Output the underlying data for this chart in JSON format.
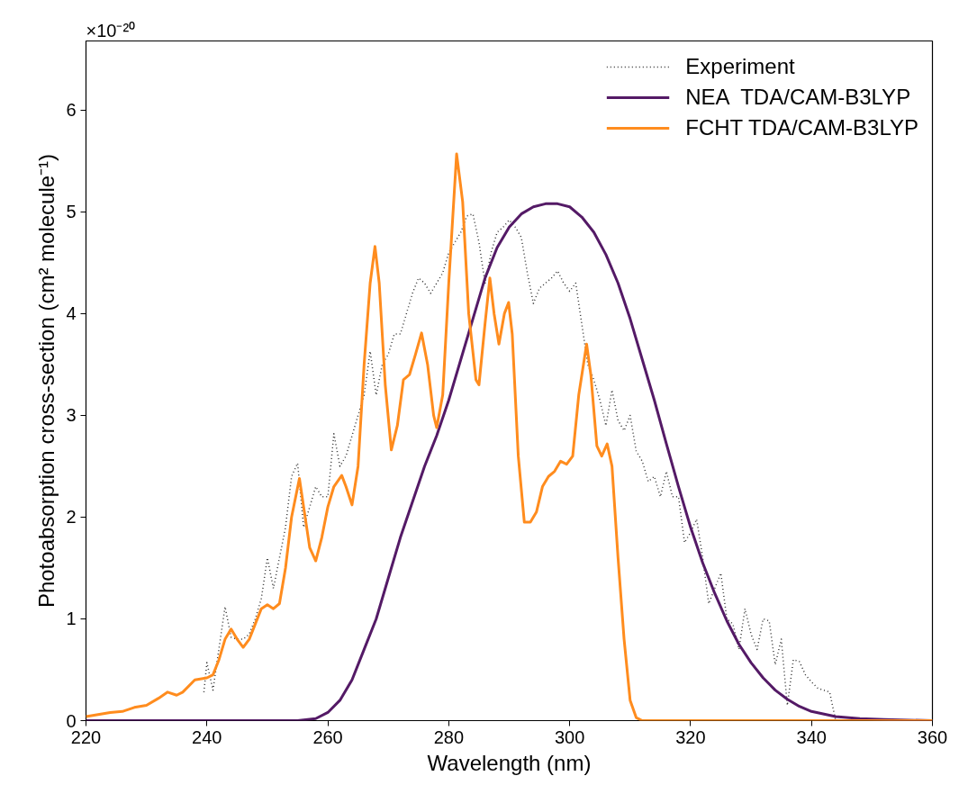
{
  "chart_data": {
    "type": "line",
    "xlabel": "Wavelength (nm)",
    "ylabel": "Photoabsorption cross-section (cm² molecule⁻¹)",
    "annotations": [
      "×10⁻²⁰"
    ],
    "xlim": [
      220,
      360
    ],
    "xticks": [
      220,
      240,
      260,
      280,
      300,
      320,
      340,
      360
    ],
    "ylim": [
      0,
      6.68
    ],
    "yticks": [
      0,
      1,
      2,
      3,
      4,
      5,
      6
    ],
    "grid": false,
    "legend": "top right",
    "series": [
      {
        "name": "Experiment",
        "color": "#333333",
        "line_style": "dotted",
        "x": [
          239.5,
          240,
          241,
          243,
          244,
          245,
          246,
          247,
          248,
          249,
          250,
          251,
          252,
          253,
          254,
          255,
          256,
          257,
          258,
          259,
          260,
          261,
          262,
          263,
          264,
          265,
          266,
          267,
          268,
          269,
          270,
          271,
          272,
          273,
          274,
          275,
          276,
          277,
          278,
          279,
          280,
          281,
          282,
          283,
          284,
          285,
          286,
          287,
          288,
          289,
          290,
          291,
          292,
          293,
          294,
          295,
          296,
          297,
          298,
          299,
          300,
          301,
          302,
          303,
          304,
          305,
          306,
          307,
          308,
          309,
          310,
          311,
          312,
          313,
          314,
          315,
          316,
          317,
          318,
          319,
          320,
          321,
          322,
          323,
          324,
          325,
          326,
          327,
          328,
          329,
          330,
          331,
          332,
          333,
          334,
          335,
          336,
          337,
          338,
          339,
          340,
          341,
          342,
          343,
          344
        ],
        "values": [
          0.28,
          0.57,
          0.3,
          1.12,
          0.82,
          0.8,
          0.8,
          0.85,
          1.0,
          1.2,
          1.6,
          1.3,
          1.6,
          1.9,
          2.4,
          2.53,
          1.9,
          2.1,
          2.3,
          2.2,
          2.2,
          2.82,
          2.5,
          2.6,
          2.8,
          3.0,
          3.2,
          3.63,
          3.2,
          3.5,
          3.6,
          3.8,
          3.8,
          4.0,
          4.2,
          4.35,
          4.3,
          4.2,
          4.3,
          4.4,
          4.6,
          4.7,
          4.8,
          4.96,
          4.98,
          4.7,
          4.3,
          4.6,
          4.8,
          4.85,
          4.92,
          4.85,
          4.75,
          4.4,
          4.1,
          4.25,
          4.3,
          4.35,
          4.42,
          4.3,
          4.22,
          4.3,
          3.9,
          3.5,
          3.35,
          3.15,
          2.9,
          3.25,
          2.95,
          2.85,
          3.0,
          2.65,
          2.55,
          2.35,
          2.4,
          2.2,
          2.45,
          2.2,
          2.2,
          1.75,
          1.85,
          1.98,
          1.6,
          1.15,
          1.3,
          1.45,
          1.0,
          0.95,
          0.7,
          1.1,
          0.85,
          0.7,
          1.0,
          0.98,
          0.55,
          0.8,
          0.15,
          0.6,
          0.58,
          0.45,
          0.38,
          0.32,
          0.3,
          0.28,
          0.0
        ]
      },
      {
        "name": "NEA  TDA/CAM-B3LYP",
        "color": "#541a66",
        "line_style": "solid",
        "x": [
          220,
          255,
          258,
          260,
          262,
          264,
          266,
          268,
          270,
          272,
          274,
          276,
          278,
          280,
          282,
          284,
          286,
          288,
          290,
          292,
          294,
          296,
          298,
          300,
          302,
          304,
          306,
          308,
          310,
          312,
          314,
          316,
          318,
          320,
          322,
          324,
          326,
          328,
          330,
          332,
          334,
          336,
          338,
          340,
          344,
          348,
          352,
          360
        ],
        "values": [
          0,
          0,
          0.02,
          0.08,
          0.2,
          0.4,
          0.7,
          1.0,
          1.4,
          1.8,
          2.15,
          2.5,
          2.8,
          3.15,
          3.55,
          3.95,
          4.35,
          4.65,
          4.85,
          4.98,
          5.05,
          5.08,
          5.08,
          5.05,
          4.95,
          4.8,
          4.58,
          4.3,
          3.95,
          3.55,
          3.15,
          2.72,
          2.3,
          1.9,
          1.55,
          1.25,
          0.98,
          0.75,
          0.57,
          0.42,
          0.3,
          0.21,
          0.14,
          0.09,
          0.04,
          0.02,
          0.01,
          0.0
        ]
      },
      {
        "name": "FCHT TDA/CAM-B3LYP",
        "color": "#ff8c1e",
        "line_style": "solid",
        "x": [
          220,
          222,
          224,
          226,
          228,
          230,
          232,
          233.5,
          235,
          236,
          238,
          240,
          241,
          242,
          243,
          244,
          245,
          246,
          247,
          248,
          249,
          250,
          251,
          252,
          253,
          254,
          255.3,
          256,
          257,
          258,
          259,
          260,
          261,
          262.3,
          263,
          264,
          265,
          266,
          267,
          267.8,
          268.5,
          269.5,
          270.5,
          271.5,
          272.5,
          273.5,
          274.5,
          275.5,
          276.5,
          277.5,
          278,
          279,
          280,
          281.3,
          282.3,
          283.3,
          284.5,
          285,
          286,
          286.8,
          287.5,
          288.3,
          289.2,
          289.9,
          290.5,
          291.5,
          292.5,
          293.5,
          294.5,
          295.5,
          296.5,
          297.5,
          298.5,
          299.5,
          300.5,
          301.5,
          302.8,
          303.5,
          304.5,
          305.3,
          306.2,
          307,
          308,
          309,
          310,
          311,
          312,
          360
        ],
        "values": [
          0.04,
          0.06,
          0.08,
          0.09,
          0.13,
          0.15,
          0.22,
          0.28,
          0.25,
          0.28,
          0.4,
          0.42,
          0.45,
          0.6,
          0.8,
          0.9,
          0.8,
          0.72,
          0.8,
          0.95,
          1.1,
          1.14,
          1.1,
          1.15,
          1.5,
          2.0,
          2.38,
          2.1,
          1.7,
          1.57,
          1.8,
          2.1,
          2.3,
          2.41,
          2.3,
          2.12,
          2.5,
          3.5,
          4.3,
          4.66,
          4.3,
          3.3,
          2.66,
          2.9,
          3.35,
          3.4,
          3.6,
          3.81,
          3.5,
          3.0,
          2.88,
          3.2,
          4.3,
          5.57,
          5.1,
          4.0,
          3.35,
          3.3,
          3.9,
          4.35,
          4.0,
          3.7,
          4.0,
          4.11,
          3.8,
          2.6,
          1.95,
          1.95,
          2.05,
          2.3,
          2.4,
          2.45,
          2.55,
          2.52,
          2.6,
          3.2,
          3.7,
          3.4,
          2.7,
          2.6,
          2.72,
          2.5,
          1.6,
          0.8,
          0.2,
          0.03,
          0.0,
          0.0
        ]
      }
    ]
  }
}
